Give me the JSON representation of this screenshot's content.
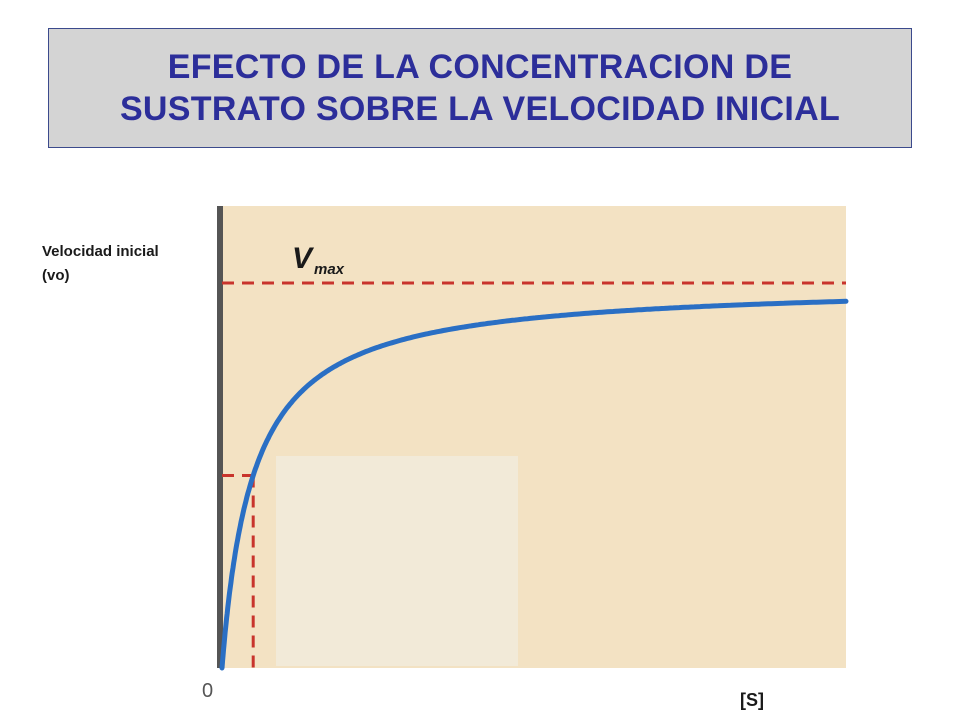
{
  "title": {
    "line1": "EFECTO DE LA CONCENTRACION DE",
    "line2": "SUSTRATO SOBRE LA VELOCIDAD INICIAL"
  },
  "axis": {
    "ylabel_line1": "Velocidad inicial",
    "ylabel_line2": "(vo)",
    "xlabel": "[S]",
    "origin": "0"
  },
  "chart_data": {
    "type": "line",
    "title": "",
    "xlabel": "[S]",
    "ylabel": "Velocidad inicial (vo)",
    "xlim": [
      0,
      10
    ],
    "ylim": [
      0,
      1.2
    ],
    "vmax": 1.0,
    "km": 0.5,
    "annotations": [
      {
        "type": "hline",
        "y": 1.0,
        "label": "Vmax",
        "style": "dashed",
        "color": "#c8342c"
      },
      {
        "type": "hline",
        "y": 0.5,
        "xmax": 0.5,
        "style": "dashed",
        "color": "#c8342c"
      },
      {
        "type": "vline",
        "x": 0.5,
        "ymax": 0.5,
        "style": "dashed",
        "color": "#c8342c"
      }
    ],
    "series": [
      {
        "values_x": [
          0,
          0.1,
          0.25,
          0.5,
          1,
          2,
          3,
          4,
          6,
          8,
          10
        ],
        "values_y": [
          0,
          0.167,
          0.333,
          0.5,
          0.667,
          0.8,
          0.857,
          0.889,
          0.923,
          0.941,
          0.952
        ]
      }
    ],
    "grid": false,
    "colors": {
      "curve": "#2a6fc4",
      "dashed": "#c8342c",
      "background": "#f3e2c3",
      "axis": "#555555"
    }
  }
}
